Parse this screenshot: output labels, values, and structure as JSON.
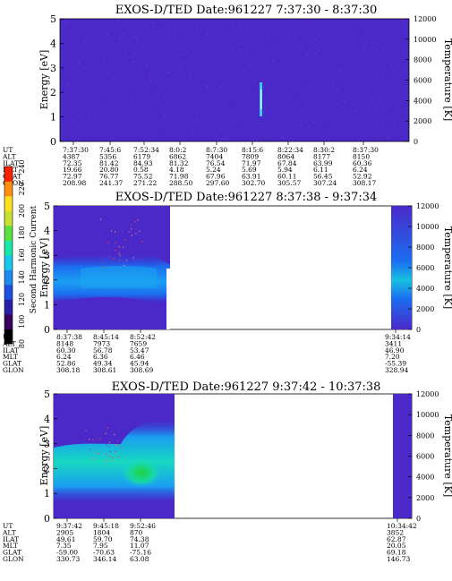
{
  "figure": {
    "colorbar": {
      "label": "Second Harmonic Current",
      "ticks": [
        "80",
        "100",
        "120",
        "140",
        "160",
        "180",
        "200",
        "220",
        "240"
      ],
      "colors": [
        "#000000",
        "#3a0060",
        "#2a1fa8",
        "#1f4fe0",
        "#1c8bf0",
        "#19c8e8",
        "#17e8a8",
        "#5ae040",
        "#c8e030",
        "#ffe020",
        "#ff9010",
        "#ff2000"
      ]
    }
  },
  "chart_data": [
    {
      "type": "heatmap",
      "title": "EXOS-D/TED   Date:961227  7:37:30 - 8:37:30",
      "ylabel": "Energy [eV]",
      "ylabel_right": "Temperature [K]",
      "ylim": [
        0,
        5
      ],
      "ylim_right": [
        0,
        12000
      ],
      "yticks": [
        "0",
        "1",
        "2",
        "3",
        "4",
        "5"
      ],
      "yticks_right": [
        "0",
        "2000",
        "4000",
        "6000",
        "8000",
        "10000",
        "12000"
      ],
      "coverage": "full",
      "background_color": "#4b29c9",
      "feature": "narrow bright vertical streak near 8:13, energy 1.2-2.5 eV",
      "table": {
        "row_labels": [
          "UT",
          "ALT",
          "ILAT",
          "MLT",
          "GLAT",
          "GLON"
        ],
        "columns": [
          [
            "7:37:30",
            "4387",
            "72.35",
            "19.66",
            "72.97",
            "208.98"
          ],
          [
            "7:45:6",
            "5356",
            "81.42",
            "20.80",
            "76.77",
            "241.37"
          ],
          [
            "7:52:34",
            "6179",
            "84.93",
            "0.58",
            "75.52",
            "271.22"
          ],
          [
            "8:0:2",
            "6862",
            "81.32",
            "4.18",
            "71.98",
            "288.50"
          ],
          [
            "8:7:30",
            "7404",
            "76.54",
            "5.24",
            "67.96",
            "297.60"
          ],
          [
            "8:15:6",
            "7809",
            "71.97",
            "5.69",
            "63.91",
            "302.70"
          ],
          [
            "8:22:34",
            "8064",
            "67.84",
            "5.94",
            "60.11",
            "305.57"
          ],
          [
            "8:30:2",
            "8177",
            "63.99",
            "6.11",
            "56.45",
            "307.24"
          ],
          [
            "8:37:30",
            "8150",
            "60.36",
            "6.24",
            "52.92",
            "308.17"
          ]
        ]
      }
    },
    {
      "type": "heatmap",
      "title": "EXOS-D/TED   Date:961227  8:37:38 - 9:37:34",
      "ylabel": "Energy [eV]",
      "ylabel_right": "Temperature [K]",
      "ylim": [
        0,
        5
      ],
      "ylim_right": [
        0,
        12000
      ],
      "yticks": [
        "0",
        "1",
        "2",
        "3",
        "4",
        "5"
      ],
      "yticks_right": [
        "0",
        "2000",
        "4000",
        "6000",
        "8000",
        "10000",
        "12000"
      ],
      "coverage": "data from 8:37:38 to about 8:55, then gap, then a narrow strip at 9:34:14",
      "background_color": "#4b29c9",
      "feature": "enhanced band 1.2-3.0 eV, strongest near 1.5-2.5 eV; white gap after about 8:55",
      "table": {
        "row_labels": [
          "UT",
          "ALT",
          "ILAT",
          "MLT",
          "GLAT",
          "GLON"
        ],
        "columns": [
          [
            "8:37:38",
            "8148",
            "60.30",
            "6.24",
            "52.86",
            "308.18"
          ],
          [
            "8:45:14",
            "7973",
            "56.78",
            "6.36",
            "49.34",
            "308.61"
          ],
          [
            "8:52:42",
            "7659",
            "53.47",
            "6.46",
            "45.94",
            "308.69"
          ],
          [
            "9:34:14",
            "3411",
            "46.90",
            "7.20",
            "-55.39",
            "328.94"
          ]
        ]
      }
    },
    {
      "type": "heatmap",
      "title": "EXOS-D/TED   Date:961227  9:37:42 - 10:37:38",
      "ylabel": "Energy [eV]",
      "ylabel_right": "Temperature [K]",
      "ylim": [
        0,
        5
      ],
      "ylim_right": [
        0,
        12000
      ],
      "yticks": [
        "0",
        "1",
        "2",
        "3",
        "4",
        "5"
      ],
      "yticks_right": [
        "0",
        "2000",
        "4000",
        "6000",
        "8000",
        "10000",
        "12000"
      ],
      "coverage": "data from 9:37:42 to about 9:58, then gap, then a narrow strip at 10:34:42",
      "background_color": "#4b29c9",
      "feature": "strong enhanced band 1.0-3.0 eV, green core near 1.5 eV around 9:53",
      "table": {
        "row_labels": [
          "UT",
          "ALT",
          "ILAT",
          "MLT",
          "GLAT",
          "GLON"
        ],
        "columns": [
          [
            "9:37:42",
            "2905",
            "49.61",
            "7.35",
            "-59.00",
            "330.73"
          ],
          [
            "9:45:18",
            "1804",
            "59.70",
            "7.95",
            "-70.63",
            "346.14"
          ],
          [
            "9:52:46",
            "870",
            "74.38",
            "11.07",
            "-75.16",
            "63.08"
          ],
          [
            "10:34:42",
            "3852",
            "62.87",
            "20.05",
            "69.18",
            "146.73"
          ]
        ]
      }
    }
  ]
}
